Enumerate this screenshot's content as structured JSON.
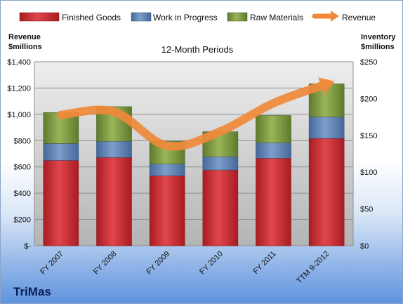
{
  "chart_data": {
    "type": "bar",
    "stacked": true,
    "title": "12-Month Periods",
    "company": "TriMas",
    "categories": [
      "FY 2007",
      "FY 2008",
      "FY 2009",
      "FY 2010",
      "FY 2011",
      "TTM 9-2012"
    ],
    "y_left": {
      "label_lines": [
        "Revenue",
        "$millions"
      ],
      "ylim": [
        0,
        1400
      ],
      "ticks": [
        0,
        200,
        400,
        600,
        800,
        1000,
        1200,
        1400
      ],
      "tick_labels": [
        "$-",
        "$200",
        "$400",
        "$600",
        "$800",
        "$1,000",
        "$1,200",
        "$1,400"
      ]
    },
    "y_right": {
      "label_lines": [
        "Inventory",
        "$millions"
      ],
      "ylim": [
        0,
        250
      ],
      "ticks": [
        0,
        50,
        100,
        150,
        200,
        250
      ],
      "tick_labels": [
        "$0",
        "$50",
        "$100",
        "$150",
        "$200",
        "$250"
      ]
    },
    "series": [
      {
        "name": "Finished Goods",
        "axis": "right",
        "kind": "bar",
        "color": "#c0272d",
        "values": [
          116,
          120,
          95,
          103,
          119,
          146
        ]
      },
      {
        "name": "Work in Progress",
        "axis": "right",
        "kind": "bar",
        "color": "#4f81bd",
        "values": [
          23,
          22,
          16,
          18,
          21,
          29
        ]
      },
      {
        "name": "Raw Materials",
        "axis": "right",
        "kind": "bar",
        "color": "#77933c",
        "values": [
          42,
          47,
          31,
          34,
          37,
          45
        ]
      },
      {
        "name": "Revenue",
        "axis": "left",
        "kind": "line",
        "color": "#f0893a",
        "values": [
          995,
          1020,
          760,
          870,
          1085,
          1230
        ]
      }
    ],
    "grid": true,
    "legend_position": "top"
  }
}
